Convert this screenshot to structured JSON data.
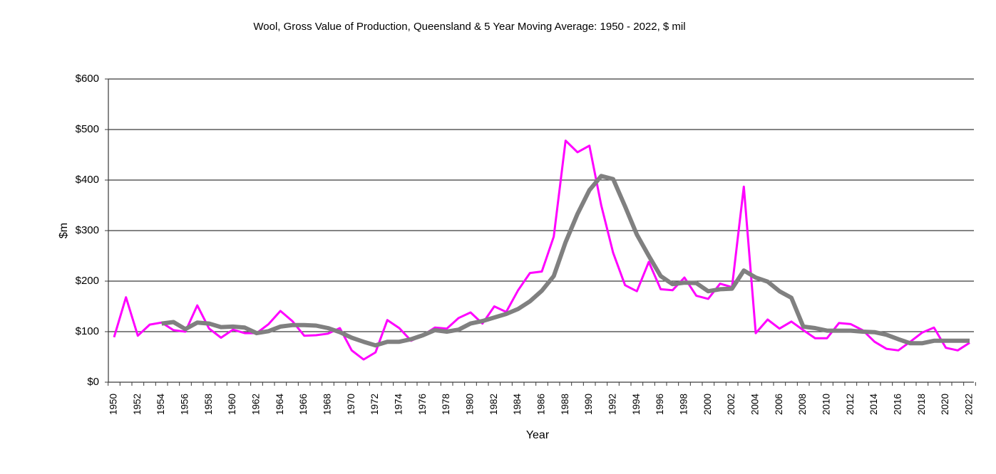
{
  "chart_data": {
    "type": "line",
    "title": "Wool, Gross Value of Production, Queensland & 5 Year Moving Average: 1950 - 2022, $ mil",
    "xlabel": "Year",
    "ylabel": "$m",
    "ylim": [
      0,
      600
    ],
    "xlim": [
      1950,
      2022
    ],
    "y_ticks": [
      0,
      100,
      200,
      300,
      400,
      500,
      600
    ],
    "y_tick_labels": [
      "$0",
      "$100",
      "$200",
      "$300",
      "$400",
      "$500",
      "$600"
    ],
    "x_tick_labels": [
      "1950",
      "1952",
      "1954",
      "1956",
      "1958",
      "1960",
      "1962",
      "1964",
      "1966",
      "1968",
      "1970",
      "1972",
      "1974",
      "1976",
      "1978",
      "1980",
      "1982",
      "1984",
      "1986",
      "1988",
      "1990",
      "1992",
      "1994",
      "1996",
      "1998",
      "2000",
      "2002",
      "2004",
      "2006",
      "2008",
      "2010",
      "2012",
      "2014",
      "2016",
      "2018",
      "2020",
      "2022"
    ],
    "grid": "horizontal",
    "legend": "none",
    "series": [
      {
        "name": "Gross Value of Production",
        "color": "#ff00ff",
        "x_start": 1950,
        "values": [
          89,
          168,
          92,
          114,
          118,
          103,
          100,
          152,
          106,
          88,
          104,
          97,
          97,
          115,
          141,
          121,
          92,
          93,
          96,
          107,
          63,
          45,
          59,
          123,
          107,
          82,
          93,
          108,
          106,
          127,
          138,
          116,
          150,
          139,
          182,
          216,
          219,
          288,
          478,
          455,
          468,
          350,
          256,
          192,
          180,
          238,
          184,
          182,
          207,
          171,
          165,
          195,
          188,
          387,
          97,
          124,
          106,
          120,
          103,
          87,
          87,
          117,
          115,
          103,
          80,
          66,
          63,
          80,
          98,
          108,
          68,
          63,
          78
        ]
      },
      {
        "name": "5 Year Moving Average",
        "color": "#808080",
        "x_start": 1954,
        "values": [
          116,
          119,
          105,
          118,
          116,
          109,
          110,
          108,
          97,
          101,
          110,
          113,
          113,
          112,
          107,
          99,
          88,
          80,
          73,
          80,
          80,
          85,
          93,
          103,
          100,
          104,
          116,
          121,
          128,
          135,
          145,
          160,
          181,
          210,
          277,
          333,
          380,
          408,
          402,
          348,
          292,
          250,
          210,
          194,
          197,
          196,
          180,
          184,
          185,
          221,
          207,
          199,
          180,
          167,
          110,
          107,
          102,
          102,
          102,
          100,
          99,
          94,
          85,
          77,
          77,
          82,
          82,
          82,
          82
        ]
      }
    ]
  }
}
